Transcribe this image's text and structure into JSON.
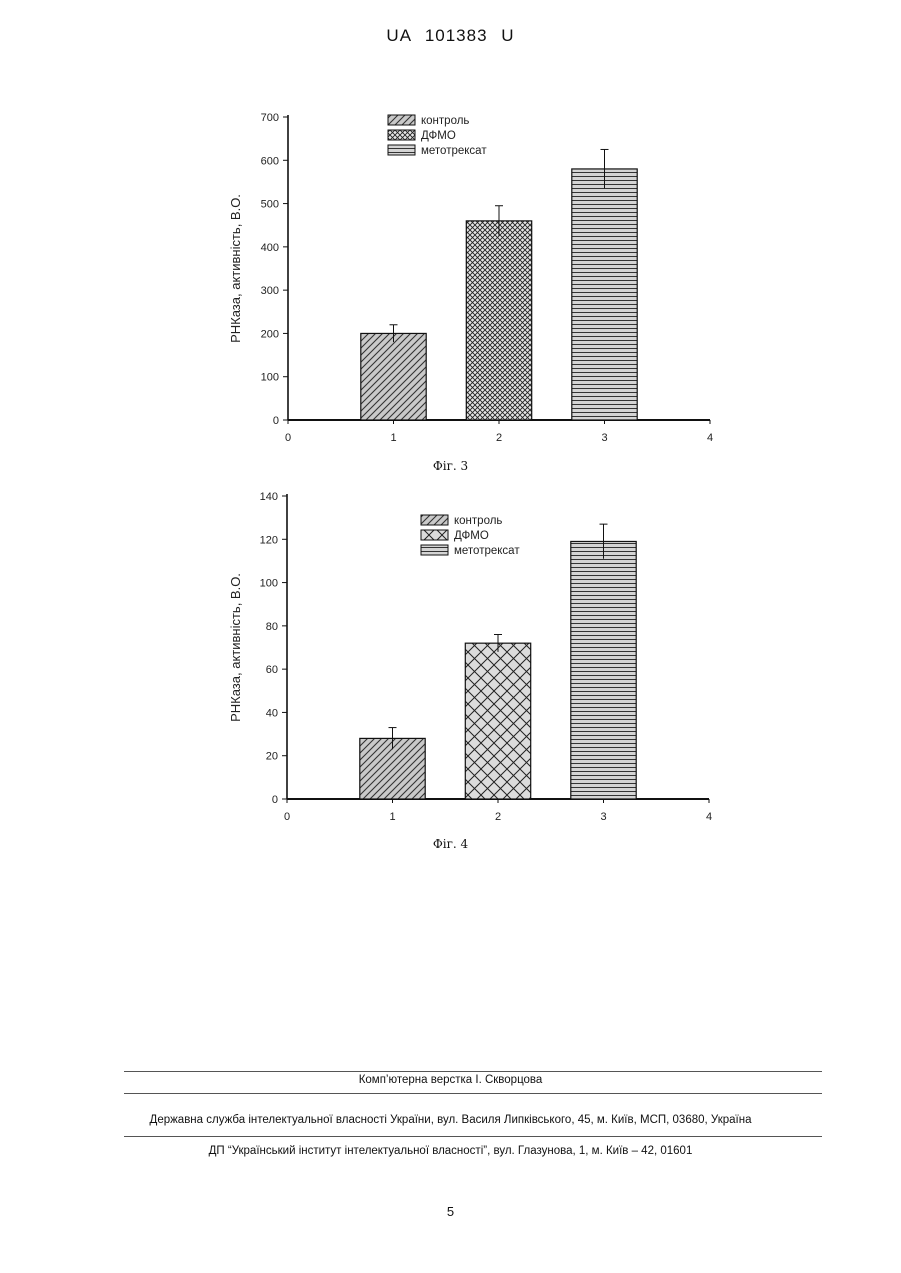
{
  "header": {
    "patent_id": "UA   101383   U"
  },
  "figures": [
    {
      "caption": "Фіг. 3"
    },
    {
      "caption": "Фіг. 4"
    }
  ],
  "footer": {
    "layout_credit": "Комп’ютерна верстка І. Скворцова",
    "agency": "Державна служба інтелектуальної власності України, вул. Василя Липківського, 45, м. Київ, МСП, 03680, Україна",
    "institute": "ДП “Український інститут інтелектуальної власності”, вул. Глазунова, 1, м. Київ – 42, 01601"
  },
  "page_number": "5",
  "chart_data": [
    {
      "type": "bar",
      "ylabel": "РНКаза, активність, В.О.",
      "xlim": [
        0,
        4
      ],
      "ylim": [
        0,
        700
      ],
      "x_ticks": [
        0,
        1,
        2,
        3,
        4
      ],
      "y_ticks": [
        0,
        100,
        200,
        300,
        400,
        500,
        600,
        700
      ],
      "legend_position": "top-center",
      "series": [
        {
          "name": "контроль",
          "x": 1,
          "value": 200,
          "error": 20,
          "pattern": "diagonal"
        },
        {
          "name": "ДФМО",
          "x": 2,
          "value": 460,
          "error": 35,
          "pattern": "fine-crosshatch"
        },
        {
          "name": "метотрексат",
          "x": 3,
          "value": 580,
          "error": 45,
          "pattern": "horizontal"
        }
      ]
    },
    {
      "type": "bar",
      "ylabel": "РНКаза, активність, В.О.",
      "xlim": [
        0,
        4
      ],
      "ylim": [
        0,
        140
      ],
      "x_ticks": [
        0,
        1,
        2,
        3,
        4
      ],
      "y_ticks": [
        0,
        20,
        40,
        60,
        80,
        100,
        120,
        140
      ],
      "legend_position": "top-center",
      "series": [
        {
          "name": "контроль",
          "x": 1,
          "value": 28,
          "error": 5,
          "pattern": "diagonal"
        },
        {
          "name": "ДФМО",
          "x": 2,
          "value": 72,
          "error": 4,
          "pattern": "crosshatch"
        },
        {
          "name": "метотрексат",
          "x": 3,
          "value": 119,
          "error": 8,
          "pattern": "horizontal"
        }
      ]
    }
  ]
}
